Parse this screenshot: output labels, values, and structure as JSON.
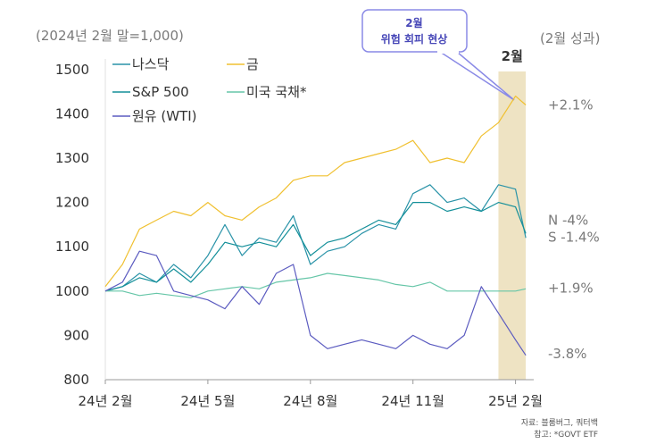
{
  "chart_data": {
    "type": "line",
    "ylabel_note": "(2024년 2월 말=1,000)",
    "right_header": "(2월 성과)",
    "highlight_label": "2월",
    "callout": {
      "line1": "2월",
      "line2": "위험 회피 현상"
    },
    "ylim": [
      800,
      1500
    ],
    "yticks": [
      "800",
      "900",
      "1000",
      "1100",
      "1200",
      "1300",
      "1400",
      "1500"
    ],
    "xticks": [
      {
        "label": "24년 2월",
        "m": 0
      },
      {
        "label": "24년 5월",
        "m": 3
      },
      {
        "label": "24년 8월",
        "m": 6
      },
      {
        "label": "24년 11월",
        "m": 9
      },
      {
        "label": "25년 2월",
        "m": 12
      }
    ],
    "highlight_range": [
      11.5,
      12.3
    ],
    "grid": false,
    "legend_position": "top-left",
    "series": [
      {
        "name": "나스닥",
        "color": "#2a93a8",
        "m": [
          0,
          0.5,
          1,
          1.5,
          2,
          2.5,
          3,
          3.5,
          4,
          4.5,
          5,
          5.5,
          6,
          6.5,
          7,
          7.5,
          8,
          8.5,
          9,
          9.5,
          10,
          10.5,
          11,
          11.5,
          12,
          12.3
        ],
        "values": [
          1000,
          1010,
          1040,
          1020,
          1060,
          1030,
          1080,
          1150,
          1080,
          1120,
          1110,
          1170,
          1060,
          1090,
          1100,
          1130,
          1150,
          1140,
          1220,
          1240,
          1200,
          1210,
          1180,
          1240,
          1230,
          1120
        ]
      },
      {
        "name": "금",
        "color": "#f0c030",
        "m": [
          0,
          0.5,
          1,
          1.5,
          2,
          2.5,
          3,
          3.5,
          4,
          4.5,
          5,
          5.5,
          6,
          6.5,
          7,
          7.5,
          8,
          8.5,
          9,
          9.5,
          10,
          10.5,
          11,
          11.5,
          12,
          12.3
        ],
        "values": [
          1010,
          1060,
          1140,
          1160,
          1180,
          1170,
          1200,
          1170,
          1160,
          1190,
          1210,
          1250,
          1260,
          1260,
          1290,
          1300,
          1310,
          1320,
          1340,
          1290,
          1300,
          1290,
          1350,
          1380,
          1440,
          1420
        ]
      },
      {
        "name": "S&P 500",
        "color": "#138f99",
        "m": [
          0,
          0.5,
          1,
          1.5,
          2,
          2.5,
          3,
          3.5,
          4,
          4.5,
          5,
          5.5,
          6,
          6.5,
          7,
          7.5,
          8,
          8.5,
          9,
          9.5,
          10,
          10.5,
          11,
          11.5,
          12,
          12.3
        ],
        "values": [
          1000,
          1010,
          1030,
          1020,
          1050,
          1020,
          1060,
          1110,
          1100,
          1110,
          1100,
          1150,
          1080,
          1110,
          1120,
          1140,
          1160,
          1150,
          1200,
          1200,
          1180,
          1190,
          1180,
          1200,
          1190,
          1130
        ]
      },
      {
        "name": "미국 국채*",
        "color": "#66c6a8",
        "m": [
          0,
          0.5,
          1,
          1.5,
          2,
          2.5,
          3,
          3.5,
          4,
          4.5,
          5,
          5.5,
          6,
          6.5,
          7,
          7.5,
          8,
          8.5,
          9,
          9.5,
          10,
          10.5,
          11,
          11.5,
          12,
          12.3
        ],
        "values": [
          1000,
          1000,
          990,
          995,
          990,
          985,
          1000,
          1005,
          1010,
          1005,
          1020,
          1025,
          1030,
          1040,
          1035,
          1030,
          1025,
          1015,
          1010,
          1020,
          1000,
          1000,
          1000,
          1000,
          1000,
          1005
        ]
      },
      {
        "name": "원유 (WTI)",
        "color": "#5b5bc0",
        "m": [
          0,
          0.5,
          1,
          1.5,
          2,
          2.5,
          3,
          3.5,
          4,
          4.5,
          5,
          5.5,
          6,
          6.5,
          7,
          7.5,
          8,
          8.5,
          9,
          9.5,
          10,
          10.5,
          11,
          11.5,
          12,
          12.3
        ],
        "values": [
          1000,
          1020,
          1090,
          1080,
          1000,
          990,
          980,
          960,
          1010,
          970,
          1040,
          1060,
          900,
          870,
          880,
          890,
          880,
          870,
          900,
          880,
          870,
          900,
          1010,
          950,
          890,
          855
        ]
      }
    ],
    "end_labels": [
      {
        "text": "+2.1%",
        "y": 1420
      },
      {
        "text": "N -4%",
        "y": 1160
      },
      {
        "text": "S -1.4%",
        "y": 1122
      },
      {
        "text": "+1.9%",
        "y": 1007
      },
      {
        "text": "-3.8%",
        "y": 858
      }
    ],
    "source": {
      "line1": "자료: 블룸버그, 쿼터백",
      "line2": "참고: *GOVT ETF"
    }
  }
}
